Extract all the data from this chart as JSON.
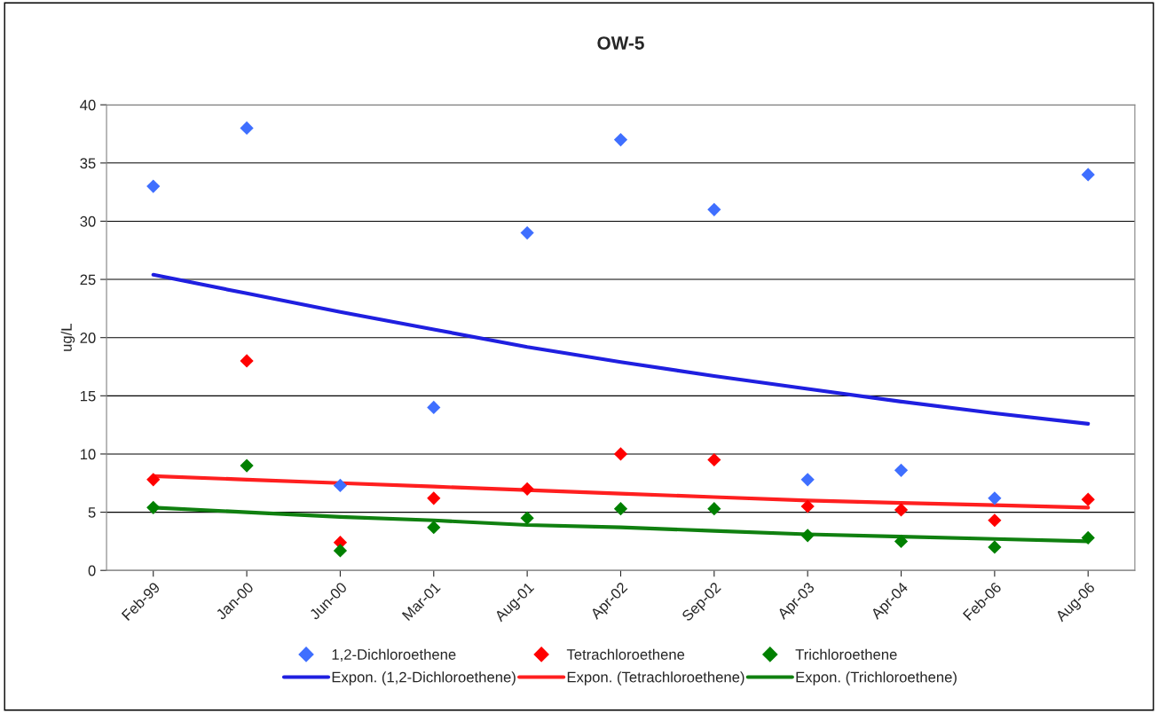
{
  "chart_data": {
    "type": "scatter",
    "title": "OW-5",
    "ylabel": "ug/L",
    "categories": [
      "Feb-99",
      "Jan-00",
      "Jun-00",
      "Mar-01",
      "Aug-01",
      "Apr-02",
      "Sep-02",
      "Apr-03",
      "Apr-04",
      "Feb-06",
      "Aug-06"
    ],
    "ylim": [
      0,
      40
    ],
    "yticks": [
      0,
      5,
      10,
      15,
      20,
      25,
      30,
      35,
      40
    ],
    "grid": "y",
    "legend": "bottom",
    "marker": "diamond",
    "series": [
      {
        "name": "1,2-Dichloroethene",
        "color": "#3f6fff",
        "values": [
          33,
          38,
          7.3,
          14,
          29,
          37,
          31,
          7.8,
          8.6,
          6.2,
          34
        ]
      },
      {
        "name": "Expon. (1,2-Dichloroethene)",
        "type": "line",
        "marker": "none",
        "color": "#1f1fe0",
        "values": [
          25.4,
          23.8,
          22.2,
          20.7,
          19.2,
          17.9,
          16.7,
          15.6,
          14.5,
          13.5,
          12.6
        ]
      },
      {
        "name": "Tetrachloroethene",
        "color": "#ff0000",
        "values": [
          7.8,
          18,
          2.4,
          6.2,
          7.0,
          10,
          9.5,
          5.5,
          5.2,
          4.3,
          6.1
        ]
      },
      {
        "name": "Expon. (Tetrachloroethene)",
        "type": "line",
        "marker": "none",
        "color": "#ff1f1f",
        "values": [
          8.1,
          7.8,
          7.5,
          7.2,
          6.9,
          6.6,
          6.3,
          6.0,
          5.8,
          5.6,
          5.4
        ]
      },
      {
        "name": "Trichloroethene",
        "color": "#008000",
        "values": [
          5.4,
          9,
          1.7,
          3.7,
          4.5,
          5.3,
          5.3,
          3.0,
          2.5,
          2.0,
          2.8
        ]
      },
      {
        "name": "Expon. (Trichloroethene)",
        "type": "line",
        "marker": "none",
        "color": "#108010",
        "values": [
          5.4,
          5.0,
          4.6,
          4.3,
          3.9,
          3.7,
          3.4,
          3.1,
          2.9,
          2.7,
          2.5
        ]
      }
    ]
  }
}
